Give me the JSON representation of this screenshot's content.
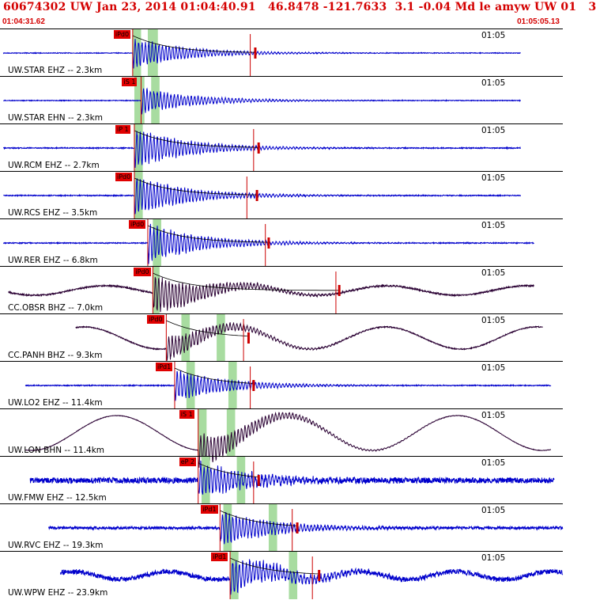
{
  "header": {
    "title": "60674302 UW Jan 23, 2014 01:04:40.91   46.8478 -121.7633  3.1 -0.04 Md le amyw UW 01   3",
    "start_time": "01:04:31.62",
    "end_time": "01:05:05.13"
  },
  "colors": {
    "header_text": "#d40000",
    "trace_blue": "#0000cc",
    "trace_dark": "#2a0033",
    "pick_box": "#e00000",
    "pick_line": "#cc0000",
    "window_green": "#a8dca0"
  },
  "chart_data": {
    "type": "seismogram",
    "time_range": [
      "01:04:31.62",
      "01:05:05.13"
    ],
    "time_tick_label": "01:05",
    "panels": [
      {
        "label": "UW.STAR EHZ -- 2.3km",
        "trace": "blue",
        "pick": "iPd0",
        "pick_time": 7.9,
        "s_time": 14.9,
        "coda_end": 15.2,
        "trace_start": 0.2,
        "trace_end": 31.0,
        "amp": 0.35,
        "noise": 0.015,
        "kind": "hf",
        "green": [
          [
            7.9,
            8.4
          ],
          [
            8.8,
            9.4
          ]
        ]
      },
      {
        "label": "UW.STAR EHN -- 2.3km",
        "trace": "blue",
        "pick": "iS 1",
        "pick_time": 8.4,
        "s_time": null,
        "coda_end": null,
        "trace_start": 0.2,
        "trace_end": 31.0,
        "amp": 0.3,
        "noise": 0.015,
        "kind": "hf",
        "green": [
          [
            8.0,
            8.6
          ],
          [
            9.0,
            9.5
          ]
        ]
      },
      {
        "label": "UW.RCM EHZ -- 2.7km",
        "trace": "blue",
        "pick": "iP 1",
        "pick_time": 8.0,
        "s_time": 15.1,
        "coda_end": 15.4,
        "trace_start": 0.2,
        "trace_end": 31.0,
        "amp": 0.45,
        "noise": 0.02,
        "kind": "hf",
        "green": [
          [
            8.0,
            8.5
          ]
        ]
      },
      {
        "label": "UW.RCS EHZ -- 3.5km",
        "trace": "blue",
        "pick": "iPd0",
        "pick_time": 8.0,
        "s_time": 14.7,
        "coda_end": 15.3,
        "trace_start": 0.2,
        "trace_end": 31.0,
        "amp": 0.45,
        "noise": 0.02,
        "kind": "hf",
        "green": [
          [
            8.0,
            8.5
          ]
        ]
      },
      {
        "label": "UW.RER EHZ -- 6.8km",
        "trace": "blue",
        "pick": "iPd0",
        "pick_time": 8.8,
        "s_time": 15.8,
        "coda_end": 16.0,
        "trace_start": 0.2,
        "trace_end": 31.8,
        "amp": 0.45,
        "noise": 0.02,
        "kind": "hf",
        "green": [
          [
            9.1,
            9.6
          ]
        ]
      },
      {
        "label": "CC.OBSR BHZ -- 7.0km",
        "trace": "dark",
        "pick": "iPd0",
        "pick_time": 9.1,
        "s_time": 20.0,
        "coda_end": 20.2,
        "trace_start": 0.5,
        "trace_end": 31.8,
        "amp": 0.45,
        "noise": 0.03,
        "kind": "lf",
        "green": [
          [
            9.1,
            9.5
          ]
        ]
      },
      {
        "label": "CC.PANH BHZ -- 9.3km",
        "trace": "dark",
        "pick": "iPd0",
        "pick_time": 9.9,
        "s_time": 14.5,
        "coda_end": 14.8,
        "trace_start": 4.5,
        "trace_end": 32.3,
        "amp": 0.3,
        "noise": 0.02,
        "kind": "lf2",
        "green": [
          [
            10.8,
            11.3
          ],
          [
            12.9,
            13.4
          ]
        ]
      },
      {
        "label": "UW.LO2 EHZ -- 11.4km",
        "trace": "blue",
        "pick": "iPd1",
        "pick_time": 10.4,
        "s_time": 14.9,
        "coda_end": 15.1,
        "trace_start": 1.5,
        "trace_end": 32.8,
        "amp": 0.35,
        "noise": 0.02,
        "kind": "hf",
        "green": [
          [
            11.1,
            11.6
          ],
          [
            13.6,
            14.1
          ]
        ]
      },
      {
        "label": "UW.LON BHN -- 11.4km",
        "trace": "dark",
        "pick": "iS 1",
        "pick_time": 11.8,
        "s_time": null,
        "coda_end": null,
        "trace_start": 1.5,
        "trace_end": 32.8,
        "amp": 0.4,
        "noise": 0.01,
        "kind": "lf3",
        "green": [
          [
            11.8,
            12.3
          ],
          [
            13.5,
            14.0
          ]
        ]
      },
      {
        "label": "UW.FMW EHZ -- 12.5km",
        "trace": "blue",
        "pick": "eP 2",
        "pick_time": 11.8,
        "s_time": 15.1,
        "coda_end": 15.4,
        "trace_start": 1.8,
        "trace_end": 33.0,
        "amp": 0.4,
        "noise": 0.12,
        "kind": "hf",
        "green": [
          [
            12.0,
            12.5
          ],
          [
            14.1,
            14.6
          ]
        ]
      },
      {
        "label": "UW.RVC EHZ -- 19.3km",
        "trace": "blue",
        "pick": "iPd1",
        "pick_time": 13.1,
        "s_time": 17.4,
        "coda_end": 17.7,
        "trace_start": 2.9,
        "trace_end": 33.5,
        "amp": 0.4,
        "noise": 0.06,
        "kind": "hf",
        "green": [
          [
            13.3,
            13.8
          ],
          [
            16.0,
            16.5
          ]
        ]
      },
      {
        "label": "UW.WPW EHZ -- 23.9km",
        "trace": "blue",
        "pick": "iPd1",
        "pick_time": 13.7,
        "s_time": 18.6,
        "coda_end": 19.0,
        "trace_start": 3.6,
        "trace_end": 33.5,
        "amp": 0.4,
        "noise": 0.1,
        "kind": "hf2",
        "green": [
          [
            13.7,
            14.2
          ],
          [
            17.2,
            17.7
          ]
        ]
      }
    ]
  }
}
